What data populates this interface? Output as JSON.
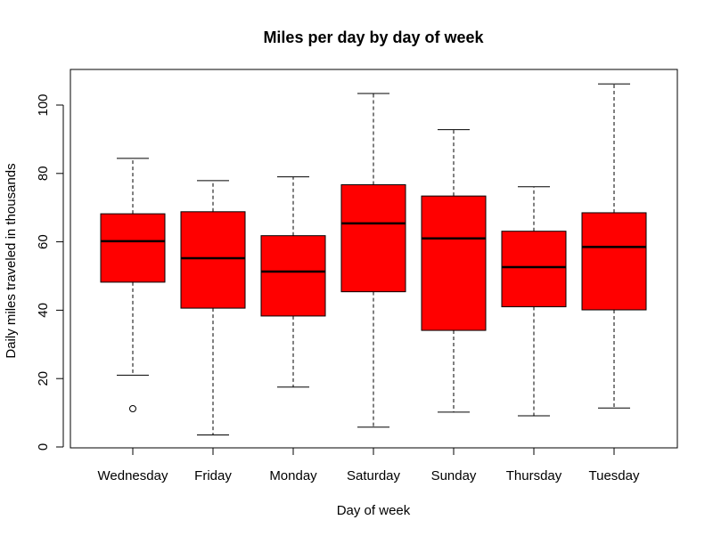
{
  "chart_data": {
    "type": "boxplot",
    "title": "Miles per day by day of week",
    "xlabel": "Day of week",
    "ylabel": "Daily miles traveled in thousands",
    "ylim": [
      0,
      110
    ],
    "yticks": [
      0,
      20,
      40,
      60,
      80,
      100
    ],
    "grid": false,
    "box_color": "#ff0000",
    "categories": [
      "Wednesday",
      "Friday",
      "Monday",
      "Saturday",
      "Sunday",
      "Thursday",
      "Tuesday"
    ],
    "boxes": [
      {
        "category": "Wednesday",
        "min": 21.0,
        "q1": 48.2,
        "median": 60.2,
        "q3": 68.2,
        "max": 84.4,
        "outliers": [
          11.2
        ]
      },
      {
        "category": "Friday",
        "min": 3.5,
        "q1": 40.6,
        "median": 55.2,
        "q3": 68.8,
        "max": 77.9,
        "outliers": []
      },
      {
        "category": "Monday",
        "min": 17.5,
        "q1": 38.3,
        "median": 51.3,
        "q3": 61.8,
        "max": 79.0,
        "outliers": []
      },
      {
        "category": "Saturday",
        "min": 5.8,
        "q1": 45.4,
        "median": 65.4,
        "q3": 76.7,
        "max": 103.4,
        "outliers": []
      },
      {
        "category": "Sunday",
        "min": 10.2,
        "q1": 34.1,
        "median": 61.0,
        "q3": 73.4,
        "max": 92.8,
        "outliers": []
      },
      {
        "category": "Thursday",
        "min": 9.1,
        "q1": 41.0,
        "median": 52.6,
        "q3": 63.1,
        "max": 76.1,
        "outliers": []
      },
      {
        "category": "Tuesday",
        "min": 11.4,
        "q1": 40.1,
        "median": 58.5,
        "q3": 68.5,
        "max": 106.2,
        "outliers": []
      }
    ]
  }
}
